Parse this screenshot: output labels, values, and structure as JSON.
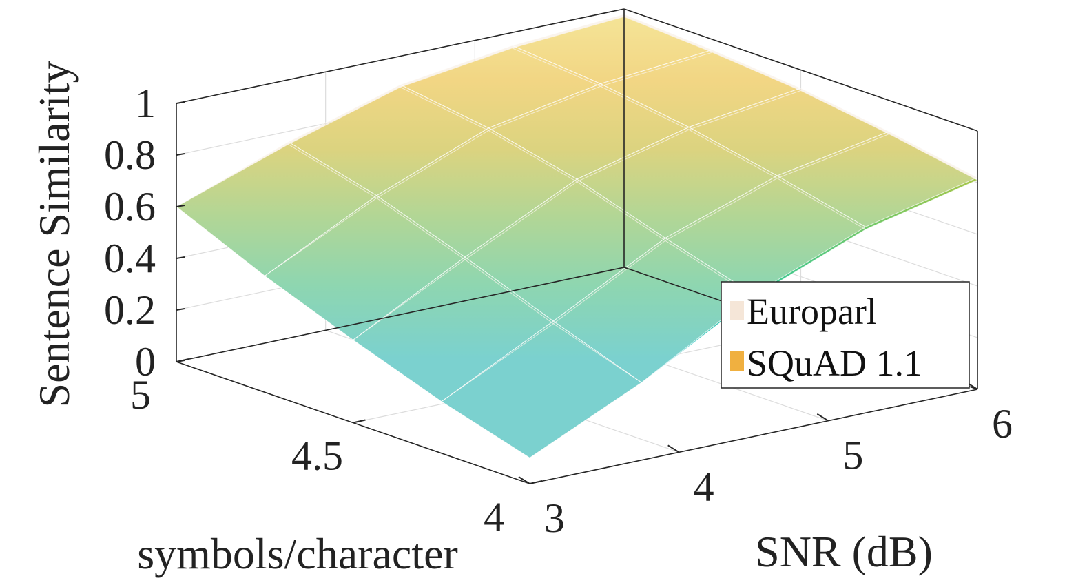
{
  "chart_data": {
    "type": "surface3d",
    "xlabel": "SNR (dB)",
    "ylabel": "symbols/character",
    "zlabel": "Sentence Similarity",
    "xlim": [
      3,
      6
    ],
    "ylim": [
      4,
      5
    ],
    "zlim": [
      0,
      1
    ],
    "x_ticks": [
      "3",
      "4",
      "5",
      "6"
    ],
    "y_ticks": [
      "4",
      "4.5",
      "5"
    ],
    "z_ticks": [
      "0",
      "0.2",
      "0.4",
      "0.6",
      "0.8",
      "1"
    ],
    "grid": true,
    "legend_position": "bottom-right",
    "x": [
      3,
      3.75,
      4.5,
      5.25,
      6
    ],
    "y": [
      4,
      4.25,
      4.5,
      4.75,
      5
    ],
    "series": [
      {
        "name": "Europarl",
        "color": "#f5e6d8",
        "z": [
          [
            0.1,
            0.3,
            0.55,
            0.72,
            0.82
          ],
          [
            0.2,
            0.42,
            0.65,
            0.8,
            0.88
          ],
          [
            0.32,
            0.55,
            0.76,
            0.87,
            0.93
          ],
          [
            0.45,
            0.67,
            0.84,
            0.92,
            0.96
          ],
          [
            0.6,
            0.76,
            0.89,
            0.95,
            0.98
          ]
        ]
      },
      {
        "name": "SQuAD 1.1",
        "color": "#f0b040",
        "z": [
          [
            0.1,
            0.3,
            0.54,
            0.71,
            0.81
          ],
          [
            0.2,
            0.41,
            0.64,
            0.79,
            0.87
          ],
          [
            0.32,
            0.54,
            0.75,
            0.86,
            0.92
          ],
          [
            0.45,
            0.66,
            0.83,
            0.91,
            0.95
          ],
          [
            0.6,
            0.75,
            0.88,
            0.94,
            0.97
          ]
        ]
      }
    ]
  }
}
